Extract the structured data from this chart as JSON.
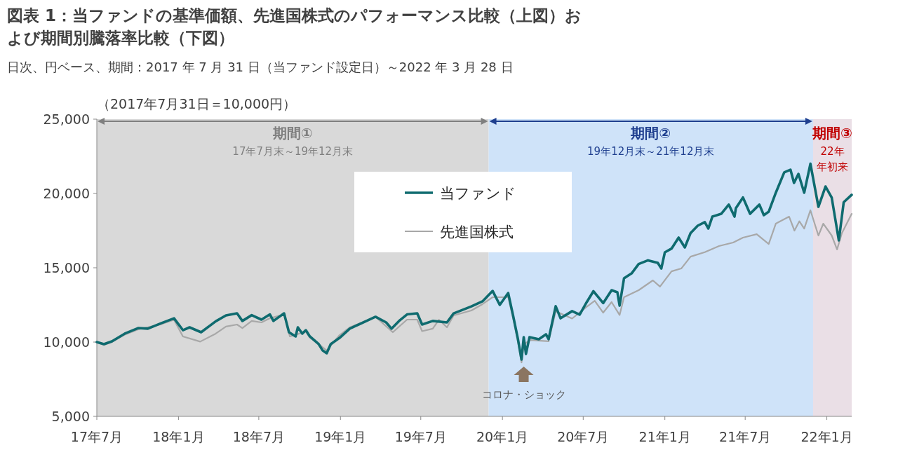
{
  "chart_data": {
    "type": "line",
    "title": "図表 1：当ファンドの基準価額、先進国株式のパフォーマンス比較（上図）および期間別騰落率比較（下図）",
    "subtitle": "日次、円ベース、期間：2017 年 7 月 31 日（当ファンド設定日）～2022 年 3 月 28 日",
    "xlim": [
      "2017-07-31",
      "2022-03-28"
    ],
    "xticks": [
      {
        "value": "2017-07-31",
        "label": "17年7月"
      },
      {
        "value": "2018-01-31",
        "label": "18年1月"
      },
      {
        "value": "2018-07-31",
        "label": "18年7月"
      },
      {
        "value": "2019-01-31",
        "label": "19年1月"
      },
      {
        "value": "2019-07-31",
        "label": "19年7月"
      },
      {
        "value": "2020-01-31",
        "label": "20年1月"
      },
      {
        "value": "2020-07-31",
        "label": "20年7月"
      },
      {
        "value": "2021-01-31",
        "label": "21年1月"
      },
      {
        "value": "2021-07-31",
        "label": "21年7月"
      },
      {
        "value": "2022-01-31",
        "label": "22年1月"
      }
    ],
    "ylim": [
      5000,
      25000
    ],
    "yticks": [
      {
        "value": 5000,
        "label": "5,000"
      },
      {
        "value": 10000,
        "label": "10,000"
      },
      {
        "value": 15000,
        "label": "15,000"
      },
      {
        "value": 20000,
        "label": "20,000"
      },
      {
        "value": 25000,
        "label": "25,000"
      }
    ],
    "grid": false,
    "legend": "top",
    "bands": [
      {
        "axis": "x",
        "from": "2017-07-31",
        "to": "2019-12-31",
        "label": "期間①",
        "color": "#d9d9d9"
      },
      {
        "axis": "x",
        "from": "2019-12-31",
        "to": "2021-12-31",
        "label": "期間②",
        "color": "#cfe3f9"
      },
      {
        "axis": "x",
        "from": "2021-12-31",
        "to": "2022-03-28",
        "label": "期間③",
        "color": "#eadfe6"
      }
    ],
    "annotations": [
      "（2017年7月31日＝10,000円）",
      "17年7月末～19年12月末",
      "19年12月末～21年12月末",
      "22年",
      "年初来",
      {
        "text": "コロナ・ショック",
        "x": "2020-03-19",
        "y": 8630
      }
    ],
    "series": [
      {
        "name": "当ファンド",
        "color": "#0f6b6f",
        "x": [
          "2017-07-31",
          "2017-08-16",
          "2017-09-03",
          "2017-10-02",
          "2017-11-01",
          "2017-11-23",
          "2017-12-23",
          "2018-01-21",
          "2018-02-10",
          "2018-02-25",
          "2018-03-23",
          "2018-04-25",
          "2018-05-18",
          "2018-06-12",
          "2018-06-24",
          "2018-07-15",
          "2018-08-06",
          "2018-08-25",
          "2018-09-02",
          "2018-09-26",
          "2018-10-07",
          "2018-10-22",
          "2018-10-27",
          "2018-11-06",
          "2018-11-14",
          "2018-11-23",
          "2018-12-13",
          "2018-12-22",
          "2018-12-31",
          "2019-01-09",
          "2019-01-29",
          "2019-02-21",
          "2019-03-23",
          "2019-04-20",
          "2019-05-14",
          "2019-05-26",
          "2019-06-12",
          "2019-06-30",
          "2019-07-23",
          "2019-08-03",
          "2019-08-27",
          "2019-09-28",
          "2019-10-13",
          "2019-11-22",
          "2019-12-17",
          "2020-01-09",
          "2020-01-25",
          "2020-02-13",
          "2020-02-24",
          "2020-03-06",
          "2020-03-14",
          "2020-03-19",
          "2020-03-24",
          "2020-04-01",
          "2020-04-22",
          "2020-05-08",
          "2020-05-14",
          "2020-05-30",
          "2020-06-10",
          "2020-07-06",
          "2020-07-23",
          "2020-08-08",
          "2020-08-23",
          "2020-09-03",
          "2020-09-14",
          "2020-10-03",
          "2020-10-16",
          "2020-10-21",
          "2020-10-31",
          "2020-11-17",
          "2020-12-03",
          "2020-12-24",
          "2021-01-15",
          "2021-01-23",
          "2021-01-31",
          "2021-02-15",
          "2021-03-03",
          "2021-03-17",
          "2021-03-30",
          "2021-04-15",
          "2021-05-01",
          "2021-05-09",
          "2021-05-18",
          "2021-06-07",
          "2021-06-24",
          "2021-07-07",
          "2021-07-10",
          "2021-07-26",
          "2021-08-11",
          "2021-09-01",
          "2021-09-11",
          "2021-09-22",
          "2021-10-08",
          "2021-10-27",
          "2021-11-10",
          "2021-11-18",
          "2021-11-28",
          "2021-12-11",
          "2021-12-25",
          "2022-01-12",
          "2022-01-28",
          "2022-02-11",
          "2022-02-27",
          "2022-03-10",
          "2022-03-28"
        ],
        "values": [
          10000,
          9860,
          10050,
          10570,
          10940,
          10900,
          11270,
          11600,
          10800,
          10990,
          10660,
          11400,
          11790,
          11930,
          11420,
          11810,
          11510,
          11860,
          11420,
          11930,
          10660,
          10380,
          10990,
          10570,
          10800,
          10380,
          9860,
          9430,
          9250,
          9860,
          10280,
          10900,
          11320,
          11700,
          11320,
          10900,
          11420,
          11860,
          11930,
          11180,
          11420,
          11320,
          11930,
          12400,
          12740,
          13440,
          12500,
          13300,
          11790,
          10190,
          8820,
          10330,
          9200,
          10330,
          10190,
          10520,
          10190,
          12410,
          11600,
          12080,
          11840,
          12690,
          13420,
          13020,
          12620,
          13490,
          13350,
          12450,
          14290,
          14620,
          15250,
          15500,
          15330,
          14950,
          16040,
          16290,
          17030,
          16370,
          17340,
          17830,
          18070,
          17640,
          18440,
          18630,
          19250,
          18440,
          19010,
          19730,
          18630,
          19250,
          18540,
          18770,
          20050,
          21420,
          21600,
          20710,
          21320,
          20050,
          22000,
          19100,
          20470,
          19720,
          16840,
          19410,
          19910
        ]
      },
      {
        "name": "先進国株式",
        "color": "#a8a8a8",
        "x": [
          "2017-07-31",
          "2017-08-16",
          "2017-09-03",
          "2017-10-02",
          "2017-11-01",
          "2017-12-23",
          "2018-01-21",
          "2018-02-10",
          "2018-03-21",
          "2018-04-25",
          "2018-05-18",
          "2018-06-12",
          "2018-06-24",
          "2018-07-15",
          "2018-08-06",
          "2018-08-25",
          "2018-09-26",
          "2018-10-09",
          "2018-11-14",
          "2018-11-23",
          "2018-12-13",
          "2018-12-31",
          "2019-01-29",
          "2019-02-21",
          "2019-04-20",
          "2019-05-29",
          "2019-06-30",
          "2019-07-23",
          "2019-08-03",
          "2019-08-27",
          "2019-09-10",
          "2019-09-28",
          "2019-10-13",
          "2019-11-22",
          "2019-12-17",
          "2020-01-09",
          "2020-02-13",
          "2020-02-24",
          "2020-03-06",
          "2020-03-14",
          "2020-03-19",
          "2020-04-01",
          "2020-05-14",
          "2020-05-30",
          "2020-07-06",
          "2020-08-08",
          "2020-08-26",
          "2020-09-14",
          "2020-10-03",
          "2020-10-21",
          "2020-10-31",
          "2020-12-03",
          "2021-01-04",
          "2021-01-20",
          "2021-02-15",
          "2021-03-09",
          "2021-03-30",
          "2021-05-01",
          "2021-06-02",
          "2021-07-04",
          "2021-07-26",
          "2021-08-26",
          "2021-09-22",
          "2021-10-08",
          "2021-11-07",
          "2021-11-19",
          "2021-11-30",
          "2021-12-11",
          "2021-12-25",
          "2022-01-12",
          "2022-01-23",
          "2022-02-11",
          "2022-02-23",
          "2022-03-06",
          "2022-03-28"
        ],
        "values": [
          10000,
          9800,
          10000,
          10500,
          10850,
          11200,
          11500,
          10380,
          10030,
          10570,
          11040,
          11180,
          10940,
          11420,
          11320,
          11600,
          11860,
          10380,
          10700,
          10300,
          9860,
          9430,
          10470,
          10990,
          11700,
          10660,
          11510,
          11510,
          10730,
          10900,
          11500,
          10990,
          11790,
          12120,
          12550,
          13020,
          13020,
          11600,
          10000,
          8630,
          9800,
          10140,
          10050,
          12080,
          11580,
          12380,
          12780,
          11980,
          12690,
          11820,
          13020,
          13490,
          14150,
          13730,
          14760,
          14950,
          15750,
          16050,
          16460,
          16700,
          17030,
          17260,
          16600,
          17970,
          18440,
          17500,
          18130,
          17640,
          18870,
          17170,
          17970,
          17170,
          16230,
          17340,
          18630
        ]
      }
    ]
  }
}
